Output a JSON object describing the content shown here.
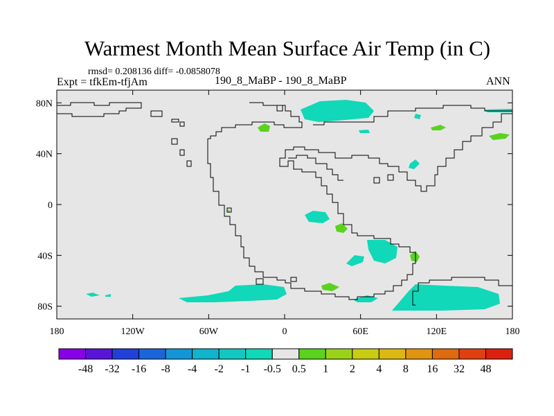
{
  "title": "Warmest Month Mean Surface Air Temp (in C)",
  "stats": "rmsd= 0.208136 diff= -0.0858078",
  "expt": "Expt = tfkEm-tfjAm",
  "subtitle": "190_8_MaBP - 190_8_MaBP",
  "season": "ANN",
  "map": {
    "lat_ticks": [
      "80N",
      "40N",
      "0",
      "40S",
      "80S"
    ],
    "lat_values": [
      80,
      40,
      0,
      -40,
      -80
    ],
    "lon_ticks": [
      "180",
      "120W",
      "60W",
      "0",
      "60E",
      "120E",
      "180"
    ],
    "lon_values": [
      -180,
      -120,
      -60,
      0,
      60,
      120,
      180
    ],
    "lat_range": [
      -90,
      90
    ],
    "lon_range": [
      -180,
      180
    ],
    "background_color": "#e6e6e6"
  },
  "colorbar": {
    "labels": [
      "-48",
      "-32",
      "-16",
      "-8",
      "-4",
      "-2",
      "-1",
      "-0.5",
      "0.5",
      "1",
      "2",
      "4",
      "8",
      "16",
      "32",
      "48"
    ],
    "colors": [
      "#8a00e6",
      "#5a14d6",
      "#2040d8",
      "#1a66d8",
      "#1496d6",
      "#10b4cc",
      "#12c8c0",
      "#10d8b8",
      "#e6e6e6",
      "#5ad21e",
      "#9ad21a",
      "#c8cc12",
      "#dcb812",
      "#e09410",
      "#e06a0e",
      "#e04010",
      "#dc2010"
    ]
  }
}
